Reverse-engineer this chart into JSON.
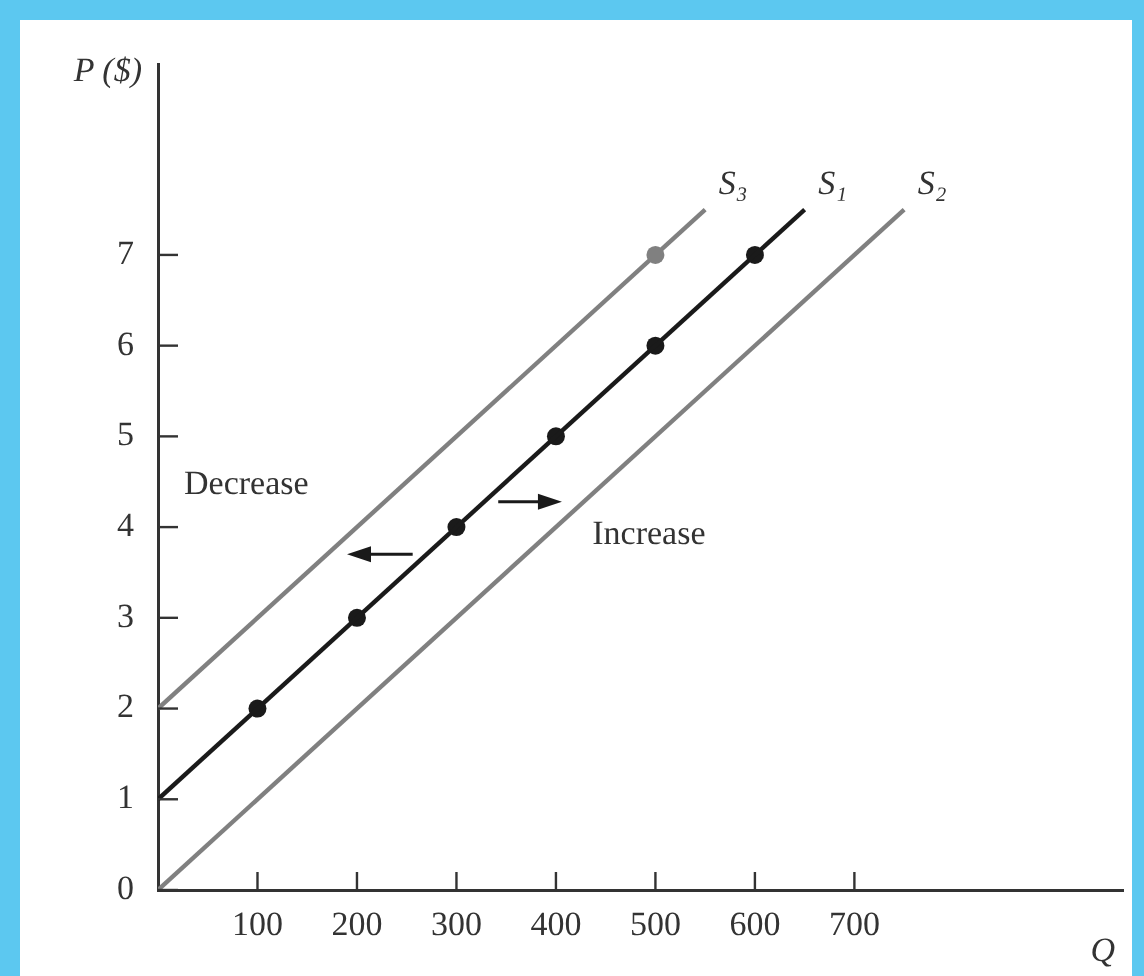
{
  "chart_data": {
    "type": "line",
    "xlabel": "Q",
    "ylabel": "P ($)",
    "annotations": [
      "Decrease",
      "Increase"
    ],
    "xlim": [
      0,
      970
    ],
    "ylim": [
      0,
      9.1
    ],
    "xticks": [
      100,
      200,
      300,
      400,
      500,
      600,
      700
    ],
    "yticks": [
      0,
      1,
      2,
      3,
      4,
      5,
      6,
      7
    ],
    "grid": false,
    "legend": false,
    "marker": "none",
    "line_style": "solid",
    "series": [
      {
        "name": "S₃",
        "color": "#808080",
        "x": [
          0,
          550
        ],
        "values": [
          2,
          7.5
        ]
      },
      {
        "name": "S₁",
        "color": "#1a1a1a",
        "x": [
          0,
          650
        ],
        "values": [
          1,
          7.5
        ]
      },
      {
        "name": "S₂",
        "color": "#808080",
        "x": [
          0,
          750
        ],
        "values": [
          0,
          7.5
        ]
      },
      {
        "type": "scatter",
        "marker": "circle",
        "color": "#1a1a1a",
        "x": [
          100,
          200,
          300,
          400,
          500,
          600
        ],
        "values": [
          2,
          3,
          4,
          5,
          6,
          7
        ]
      },
      {
        "type": "scatter",
        "marker": "circle",
        "color": "#808080",
        "x": [
          500
        ],
        "values": [
          7
        ]
      }
    ]
  }
}
